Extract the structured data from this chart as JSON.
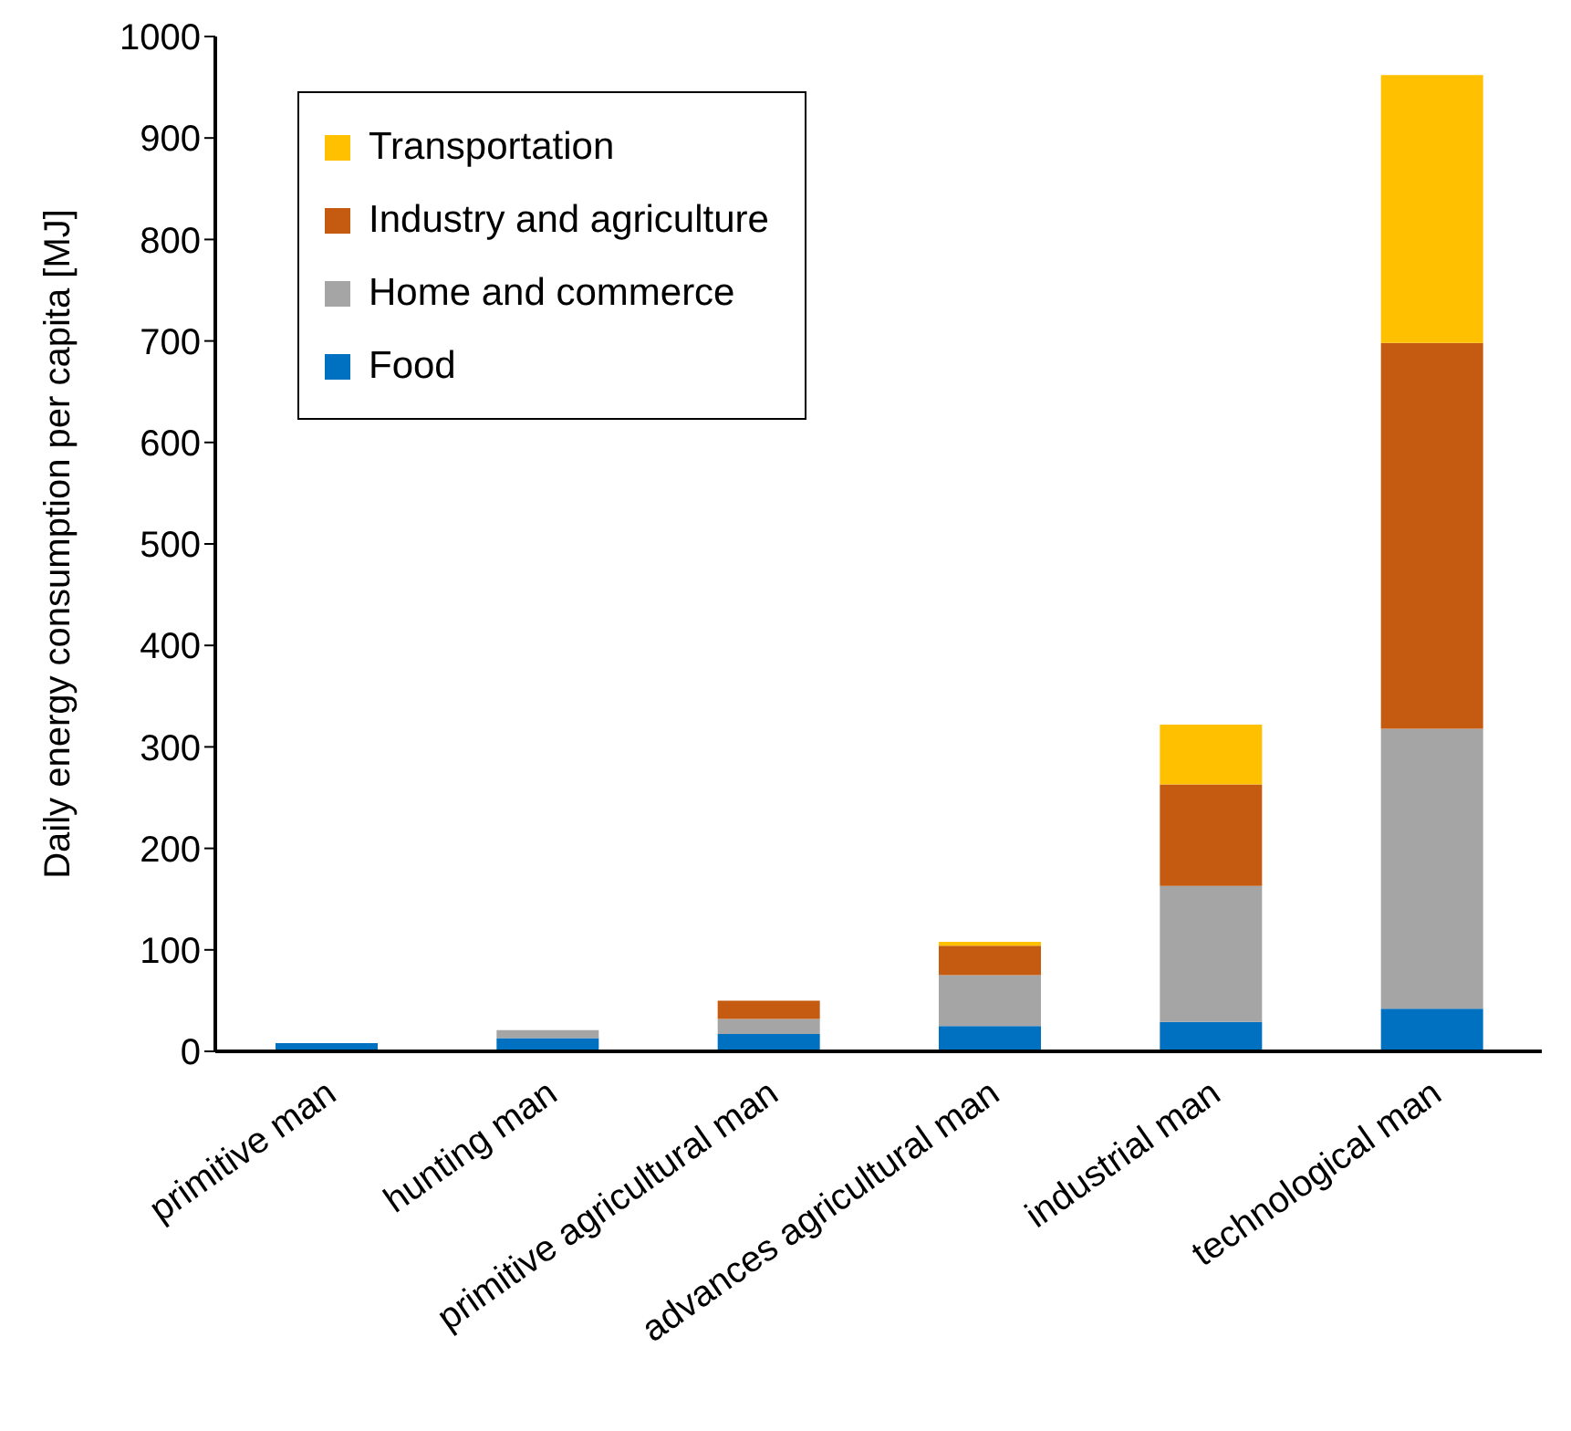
{
  "chart_data": {
    "type": "bar",
    "stacked": true,
    "ylabel": "Daily energy consumption per capita [MJ]",
    "categories": [
      "primitive man",
      "hunting man",
      "primitive agricultural man",
      "advances agricultural man",
      "industrial man",
      "technological man"
    ],
    "series": [
      {
        "name": "Food",
        "color": "#0070c0",
        "values": [
          8,
          13,
          17,
          25,
          29,
          42
        ]
      },
      {
        "name": "Home and commerce",
        "color": "#a5a5a5",
        "values": [
          null,
          8,
          15,
          50,
          134,
          276
        ]
      },
      {
        "name": "Industry and agriculture",
        "color": "#c55a11",
        "values": [
          null,
          null,
          18,
          29,
          100,
          380
        ]
      },
      {
        "name": "Transportation",
        "color": "#ffc000",
        "values": [
          null,
          null,
          null,
          4,
          59,
          264
        ]
      }
    ],
    "ylim": [
      0,
      1000
    ],
    "yticks": [
      0,
      100,
      200,
      300,
      400,
      500,
      600,
      700,
      800,
      900,
      1000
    ],
    "grid": false,
    "legend": "top left"
  }
}
